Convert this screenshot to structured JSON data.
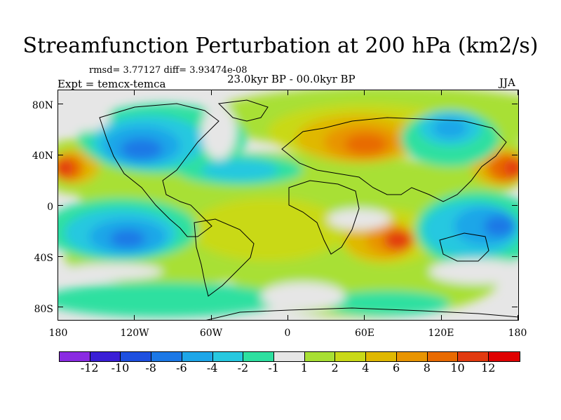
{
  "title": "Streamfunction Perturbation at 200 hPa (km2/s)",
  "stats": "rmsd= 3.77127 diff= 3.93474e-08",
  "experiment": "Expt = temcx-temca",
  "period": "23.0kyr BP - 00.0kyr BP",
  "season": "JJA",
  "lat_labels": [
    "80N",
    "40N",
    "0",
    "40S",
    "80S"
  ],
  "lon_labels": [
    "180",
    "120W",
    "60W",
    "0",
    "60E",
    "120E",
    "180"
  ],
  "colorbar": {
    "labels": [
      "-12",
      "-10",
      "-8",
      "-6",
      "-4",
      "-2",
      "-1",
      "1",
      "2",
      "4",
      "6",
      "8",
      "10",
      "12"
    ],
    "colors": [
      "#8a2be2",
      "#3a1fd6",
      "#1e50e0",
      "#1c78e6",
      "#1ea6e8",
      "#27c8e0",
      "#2ee0a0",
      "#e6e6e6",
      "#a8e034",
      "#c9d918",
      "#e0b800",
      "#e89400",
      "#e86a00",
      "#e23a10",
      "#e00000"
    ]
  },
  "field_colors": {
    "neutral": "#e6e6e6",
    "land_line": "#000000"
  }
}
